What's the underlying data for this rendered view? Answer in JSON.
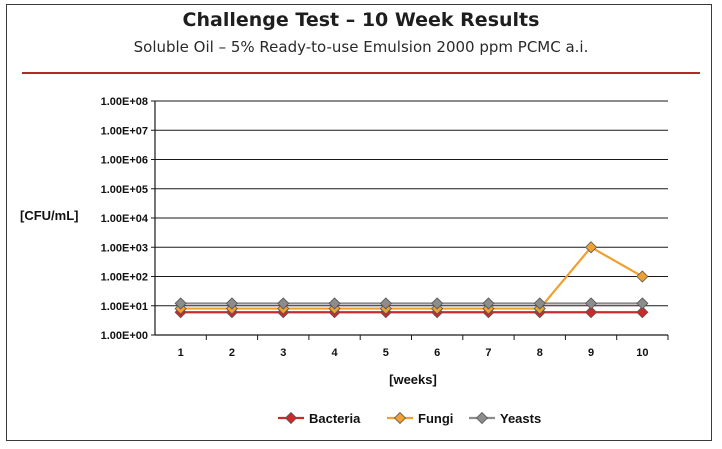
{
  "header": {
    "title": "Challenge Test – 10 Week Results",
    "subtitle": "Soluble Oil – 5% Ready-to-use Emulsion 2000 ppm PCMC a.i."
  },
  "chart_data": {
    "type": "line",
    "title": "Challenge Test – 10 Week Results",
    "subtitle": "Soluble Oil – 5% Ready-to-use Emulsion 2000 ppm PCMC a.i.",
    "xlabel": "[weeks]",
    "ylabel": "[CFU/mL]",
    "x": [
      1,
      2,
      3,
      4,
      5,
      6,
      7,
      8,
      9,
      10
    ],
    "y_scale": "log",
    "ylim": [
      1,
      100000000
    ],
    "y_ticks": [
      "1.00E+00",
      "1.00E+01",
      "1.00E+02",
      "1.00E+03",
      "1.00E+04",
      "1.00E+05",
      "1.00E+06",
      "1.00E+07",
      "1.00E+08"
    ],
    "grid": "horizontal",
    "legend_position": "bottom",
    "series": [
      {
        "name": "Bacteria",
        "color": "#cc2a2a",
        "marker": "diamond",
        "values": [
          6,
          6,
          6,
          6,
          6,
          6,
          6,
          6,
          6,
          6
        ]
      },
      {
        "name": "Fungi",
        "color": "#f0a030",
        "marker": "diamond",
        "values": [
          8,
          8,
          8,
          8,
          8,
          8,
          8,
          8,
          1000,
          100
        ]
      },
      {
        "name": "Yeasts",
        "color": "#8c8c8c",
        "marker": "diamond",
        "values": [
          12,
          12,
          12,
          12,
          12,
          12,
          12,
          12,
          12,
          12
        ]
      }
    ]
  }
}
